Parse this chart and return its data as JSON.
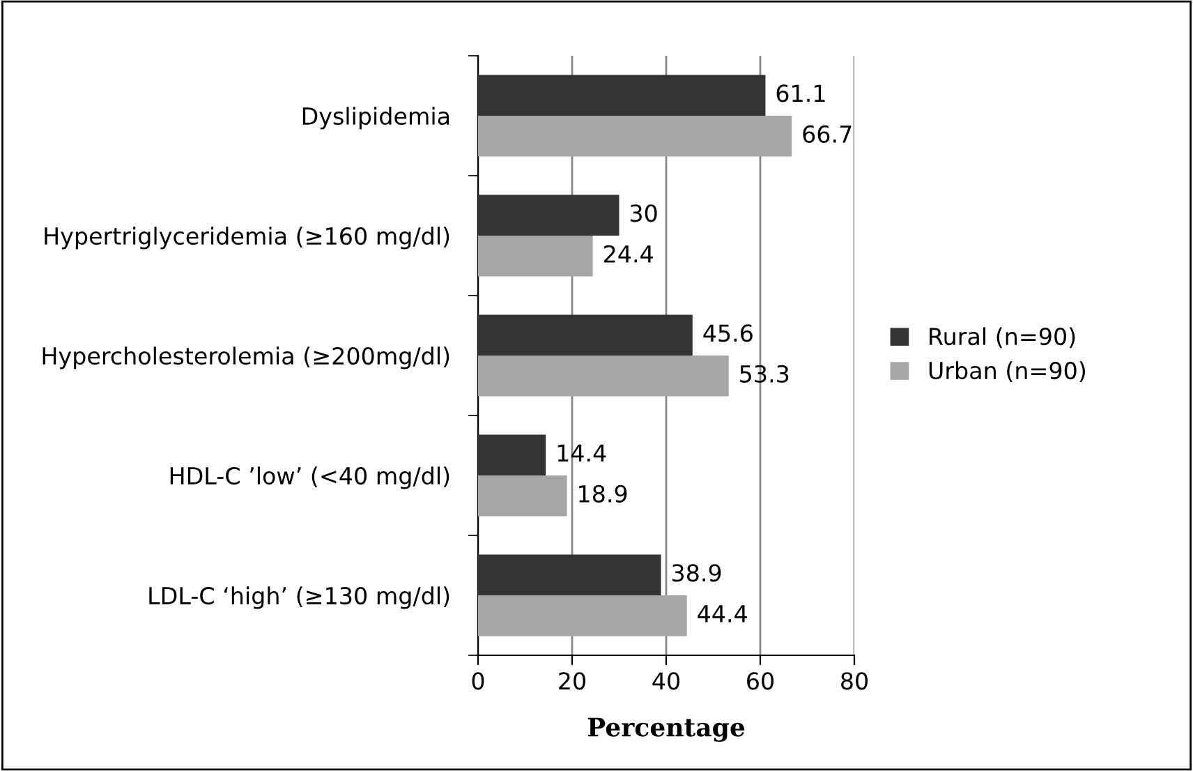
{
  "chart_data": {
    "type": "bar",
    "orientation": "horizontal",
    "xlabel": "Percentage",
    "categories": [
      "Dyslipidemia",
      "Hypertriglyceridemia (≥160 mg/dl)",
      "Hypercholesterolemia (≥200mg/dl)",
      "HDL-C ’low’ (<40 mg/dl)",
      "LDL-C ‘high’ (≥130 mg/dl)"
    ],
    "series": [
      {
        "name": "Rural (n=90)",
        "color": "#333333",
        "values": [
          61.1,
          30,
          45.6,
          14.4,
          38.9
        ]
      },
      {
        "name": "Urban (n=90)",
        "color": "#a6a6a6",
        "values": [
          66.7,
          24.4,
          53.3,
          18.9,
          44.4
        ]
      }
    ],
    "xlim": [
      0,
      80
    ],
    "xticks": [
      0,
      20,
      40,
      60,
      80
    ],
    "grid": "x",
    "legend": "right",
    "data_labels": true
  }
}
